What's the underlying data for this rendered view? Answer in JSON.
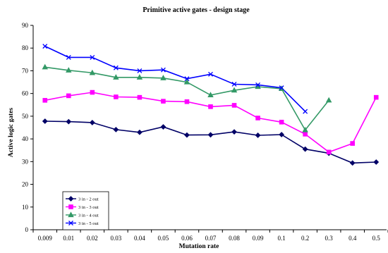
{
  "chart_data": {
    "type": "line",
    "title": "Primitive active gates  - design stage",
    "xlabel": "Mutation rate",
    "ylabel": "Active logic gates",
    "categories": [
      "0.009",
      "0.01",
      "0.02",
      "0.03",
      "0.04",
      "0.05",
      "0.06",
      "0.07",
      "0.08",
      "0.09",
      "0.1",
      "0.2",
      "0.3",
      "0.4",
      "0.5"
    ],
    "ylim": [
      0,
      90
    ],
    "yticks": [
      0,
      10,
      20,
      30,
      40,
      50,
      60,
      70,
      80,
      90
    ],
    "grid": false,
    "legend_position": "lower-left",
    "series": [
      {
        "name": "3 in - 2 out",
        "color": "#000066",
        "marker": "diamond",
        "values": [
          47.8,
          47.6,
          47.2,
          44.1,
          42.9,
          45.3,
          41.7,
          41.8,
          43.1,
          41.6,
          41.9,
          35.5,
          33.7,
          29.4,
          29.8
        ]
      },
      {
        "name": "3 in - 3 out",
        "color": "#ff00ff",
        "marker": "square",
        "values": [
          57.0,
          59.0,
          60.5,
          58.5,
          58.3,
          56.6,
          56.4,
          54.2,
          54.8,
          49.2,
          47.4,
          42.1,
          34.2,
          38.0,
          58.3
        ]
      },
      {
        "name": "3 in - 4 out",
        "color": "#339966",
        "marker": "triangle",
        "values": [
          71.6,
          70.2,
          69.1,
          67.1,
          67.1,
          66.8,
          65.0,
          59.3,
          61.4,
          63.0,
          62.1,
          43.9,
          57.0,
          null,
          null
        ]
      },
      {
        "name": "3 in - 5 out",
        "color": "#0000ff",
        "marker": "x",
        "values": [
          80.8,
          75.9,
          75.9,
          71.3,
          70.0,
          70.4,
          66.5,
          68.5,
          64.1,
          63.8,
          62.5,
          52.1,
          null,
          null,
          null
        ]
      }
    ]
  }
}
